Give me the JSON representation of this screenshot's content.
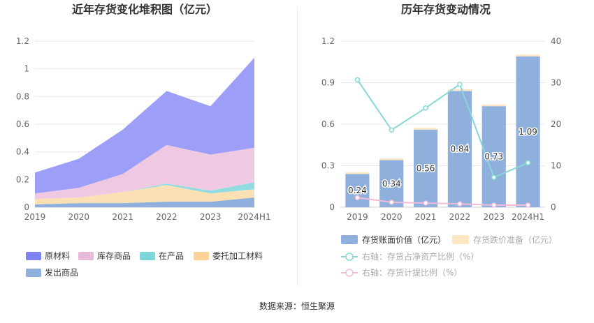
{
  "source": "数据来源：恒生聚源",
  "chart_data": [
    {
      "type": "area",
      "stacked": true,
      "title": "近年存货变化堆积图（亿元）",
      "categories": [
        "2019",
        "2020",
        "2021",
        "2022",
        "2023",
        "2024H1"
      ],
      "ylim": [
        0,
        1.2
      ],
      "yticks": [
        "0",
        "0.2",
        "0.4",
        "0.6",
        "0.8",
        "1",
        "1.2"
      ],
      "legend_position": "bottom-left",
      "series": [
        {
          "name": "发出商品",
          "color": "#8fb0dc",
          "values": [
            0.02,
            0.03,
            0.03,
            0.04,
            0.04,
            0.07
          ]
        },
        {
          "name": "委托加工材料",
          "color": "#fbe0b4",
          "values": [
            0.04,
            0.04,
            0.08,
            0.12,
            0.06,
            0.06
          ]
        },
        {
          "name": "在产品",
          "color": "#8fdde0",
          "values": [
            0.0,
            0.0,
            0.0,
            0.01,
            0.02,
            0.05
          ]
        },
        {
          "name": "库存商品",
          "color": "#efc9e2",
          "values": [
            0.04,
            0.07,
            0.13,
            0.28,
            0.26,
            0.25
          ]
        },
        {
          "name": "原材料",
          "color": "#9c9ef7",
          "values": [
            0.15,
            0.21,
            0.32,
            0.39,
            0.35,
            0.65
          ]
        }
      ],
      "legend_order": [
        "原材料",
        "库存商品",
        "在产品",
        "委托加工材料",
        "发出商品"
      ],
      "legend_colors": {
        "原材料": "#7f83f2",
        "库存商品": "#e8b9d8",
        "在产品": "#7fd6da",
        "委托加工材料": "#fcd49a",
        "发出商品": "#8fb0dc"
      }
    },
    {
      "type": "bar",
      "title": "历年存货变动情况",
      "categories": [
        "2019",
        "2020",
        "2021",
        "2022",
        "2023",
        "2024H1"
      ],
      "ylim": [
        0,
        1.2
      ],
      "yticks": [
        "0",
        "0.3",
        "0.6",
        "0.9",
        "1.2"
      ],
      "y2lim": [
        0,
        40
      ],
      "y2ticks": [
        "0",
        "10",
        "20",
        "30",
        "40"
      ],
      "series": [
        {
          "name": "存货账面价值（亿元）",
          "color": "#8fb0dc",
          "axis": "left",
          "values": [
            0.24,
            0.34,
            0.56,
            0.84,
            0.73,
            1.09
          ],
          "labels": [
            "0.24",
            "0.34",
            "0.56",
            "0.84",
            "0.73",
            "1.09"
          ]
        },
        {
          "name": "存货跌价准备（亿元）",
          "color": "#fde6c4",
          "axis": "left",
          "values": [
            0.01,
            0.0,
            0.01,
            0.01,
            0.01,
            0.01
          ]
        },
        {
          "name": "右轴：存货占净资产比例（%）",
          "color": "#86d8d8",
          "type": "line",
          "axis": "right",
          "values": [
            30.7,
            18.6,
            23.9,
            29.6,
            7.2,
            10.7
          ]
        },
        {
          "name": "右轴：存货计提比例（%）",
          "color": "#f0bcd8",
          "type": "line",
          "axis": "right",
          "values": [
            2.3,
            1.2,
            1.0,
            0.8,
            0.5,
            0.5
          ]
        }
      ],
      "legend_position": "bottom"
    }
  ]
}
